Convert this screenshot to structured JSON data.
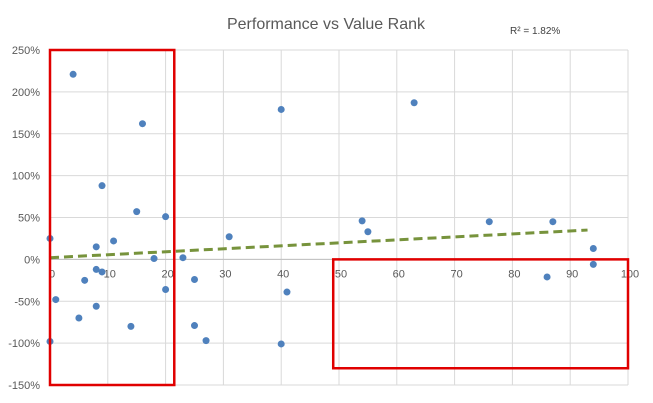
{
  "chart_data": {
    "type": "scatter",
    "title": "Performance vs Value Rank",
    "annotation": "R² = 1.82%",
    "xlabel": "",
    "ylabel": "",
    "xlim": [
      0,
      100
    ],
    "ylim": [
      -150,
      250
    ],
    "x_ticks": [
      "0",
      "10",
      "20",
      "30",
      "40",
      "50",
      "60",
      "70",
      "80",
      "90",
      "100"
    ],
    "y_ticks": [
      "250%",
      "200%",
      "150%",
      "100%",
      "50%",
      "0%",
      "-50%",
      "-100%",
      "-150%"
    ],
    "grid": true,
    "series": [
      {
        "points": [
          {
            "x": 0,
            "y": 25
          },
          {
            "x": 0,
            "y": -98
          },
          {
            "x": 1,
            "y": -48
          },
          {
            "x": 4,
            "y": 221
          },
          {
            "x": 5,
            "y": -70
          },
          {
            "x": 6,
            "y": -25
          },
          {
            "x": 8,
            "y": 15
          },
          {
            "x": 8,
            "y": -12
          },
          {
            "x": 8,
            "y": -56
          },
          {
            "x": 9,
            "y": 88
          },
          {
            "x": 9,
            "y": -15
          },
          {
            "x": 11,
            "y": 22
          },
          {
            "x": 14,
            "y": -80
          },
          {
            "x": 15,
            "y": 57
          },
          {
            "x": 16,
            "y": 162
          },
          {
            "x": 18,
            "y": 1
          },
          {
            "x": 20,
            "y": 51
          },
          {
            "x": 20,
            "y": -36
          },
          {
            "x": 23,
            "y": 2
          },
          {
            "x": 25,
            "y": -24
          },
          {
            "x": 25,
            "y": -79
          },
          {
            "x": 27,
            "y": -97
          },
          {
            "x": 31,
            "y": 27
          },
          {
            "x": 40,
            "y": 179
          },
          {
            "x": 40,
            "y": -101
          },
          {
            "x": 41,
            "y": -39
          },
          {
            "x": 54,
            "y": 46
          },
          {
            "x": 55,
            "y": 33
          },
          {
            "x": 63,
            "y": 187
          },
          {
            "x": 76,
            "y": 45
          },
          {
            "x": 86,
            "y": -21
          },
          {
            "x": 87,
            "y": 45
          },
          {
            "x": 94,
            "y": 13
          },
          {
            "x": 94,
            "y": -6
          }
        ],
        "color": "#4f81bd"
      }
    ],
    "trendline": {
      "x": [
        0,
        93
      ],
      "y": [
        2,
        35
      ],
      "color": "#77933c",
      "style": "dashed"
    },
    "highlight_boxes": [
      {
        "x_range": [
          0,
          21.5
        ],
        "y_range": [
          -150,
          250
        ],
        "color": "#e00000"
      },
      {
        "x_range": [
          49,
          100
        ],
        "y_range": [
          -130,
          0
        ],
        "color": "#e00000"
      }
    ]
  }
}
